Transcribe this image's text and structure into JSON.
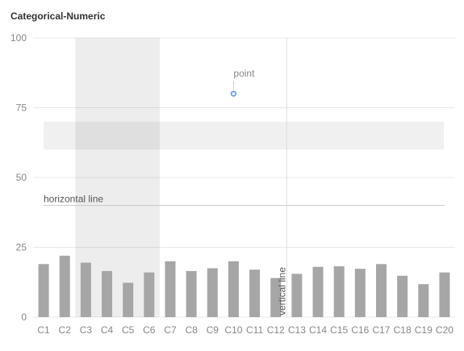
{
  "title": "Categorical-Numeric",
  "chart_data": {
    "type": "bar",
    "categories": [
      "C1",
      "C2",
      "C3",
      "C4",
      "C5",
      "C6",
      "C7",
      "C8",
      "C9",
      "C10",
      "C11",
      "C12",
      "C13",
      "C14",
      "C15",
      "C16",
      "C17",
      "C18",
      "C19",
      "C20"
    ],
    "values": [
      19,
      22,
      19.5,
      16.5,
      12.3,
      16,
      20,
      16.5,
      17.5,
      20,
      17,
      14,
      15.5,
      18,
      18.2,
      17.3,
      19,
      14.8,
      11.8,
      16
    ],
    "ylim": [
      0,
      100
    ],
    "yticks": [
      0,
      25,
      50,
      75,
      100
    ],
    "grid": true,
    "bar_color": "#a6a6a6",
    "annotations": {
      "vertical_band": {
        "from": "C3",
        "to": "C6"
      },
      "horizontal_band": {
        "from": 60,
        "to": 70
      },
      "horizontal_line": {
        "y": 40,
        "label": "horizontal line"
      },
      "vertical_line": {
        "x": "C13",
        "label": "vertical line"
      },
      "point": {
        "x": "C10",
        "y": 80,
        "label": "point",
        "color": "#5b8ff9"
      }
    }
  }
}
